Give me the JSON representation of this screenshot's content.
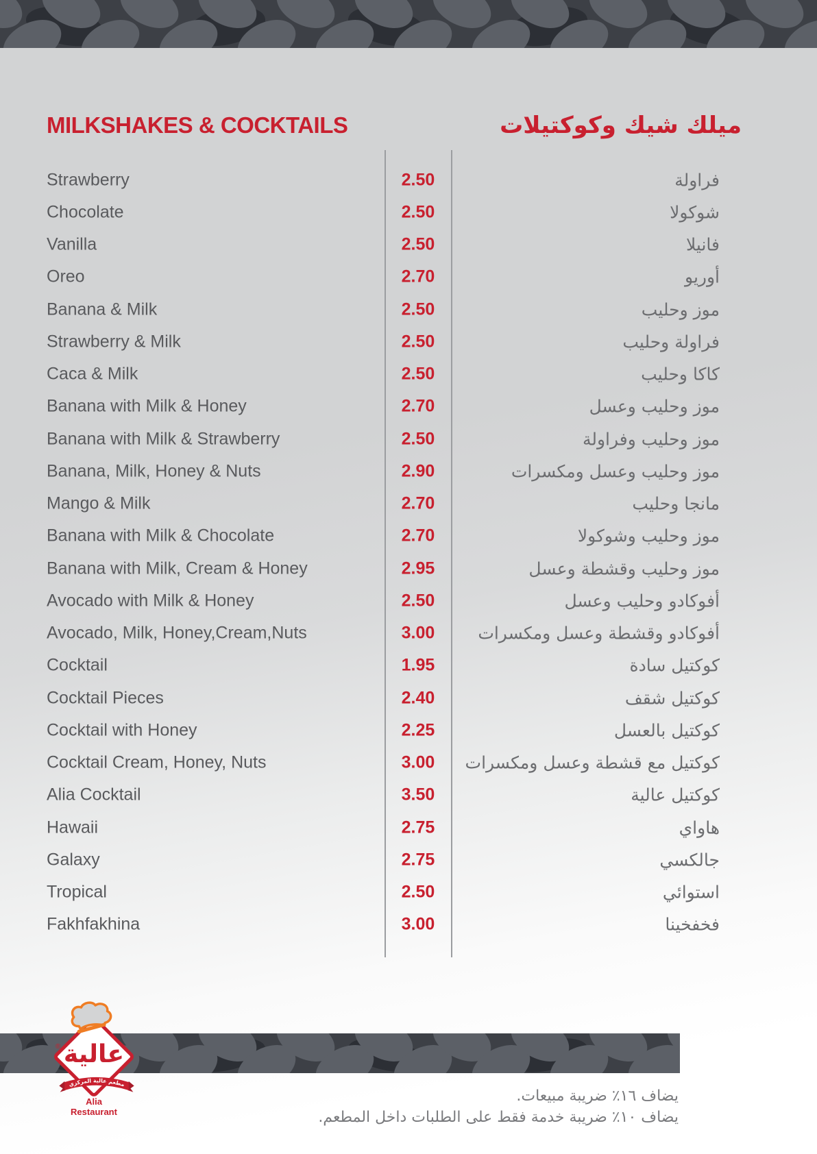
{
  "page": {
    "title_en": "MILKSHAKES & COCKTAILS",
    "title_ar": "ميلك شيك وكوكتيلات"
  },
  "menu": {
    "items": [
      {
        "en": "Strawberry",
        "price": "2.50",
        "ar": "فراولة"
      },
      {
        "en": "Chocolate",
        "price": "2.50",
        "ar": "شوكولا"
      },
      {
        "en": "Vanilla",
        "price": "2.50",
        "ar": "فانيلا"
      },
      {
        "en": "Oreo",
        "price": "2.70",
        "ar": "أوريو"
      },
      {
        "en": "Banana & Milk",
        "price": "2.50",
        "ar": "موز وحليب"
      },
      {
        "en": "Strawberry & Milk",
        "price": "2.50",
        "ar": "فراولة وحليب"
      },
      {
        "en": "Caca & Milk",
        "price": "2.50",
        "ar": "كاكا وحليب"
      },
      {
        "en": "Banana with Milk & Honey",
        "price": "2.70",
        "ar": "موز وحليب وعسل"
      },
      {
        "en": "Banana with Milk & Strawberry",
        "price": "2.50",
        "ar": "موز وحليب وفراولة"
      },
      {
        "en": "Banana, Milk, Honey & Nuts",
        "price": "2.90",
        "ar": "موز وحليب وعسل ومكسرات"
      },
      {
        "en": "Mango & Milk",
        "price": "2.70",
        "ar": "مانجا وحليب"
      },
      {
        "en": "Banana with Milk & Chocolate",
        "price": "2.70",
        "ar": "موز وحليب وشوكولا"
      },
      {
        "en": "Banana with Milk, Cream & Honey",
        "price": "2.95",
        "ar": "موز وحليب وقشطة وعسل"
      },
      {
        "en": "Avocado with Milk & Honey",
        "price": "2.50",
        "ar": "أفوكادو وحليب وعسل"
      },
      {
        "en": "Avocado, Milk, Honey,Cream,Nuts",
        "price": "3.00",
        "ar": "أفوكادو وقشطة وعسل ومكسرات"
      },
      {
        "en": "Cocktail",
        "price": "1.95",
        "ar": "كوكتيل سادة"
      },
      {
        "en": "Cocktail Pieces",
        "price": "2.40",
        "ar": "كوكتيل شقف"
      },
      {
        "en": "Cocktail with Honey",
        "price": "2.25",
        "ar": "كوكتيل بالعسل"
      },
      {
        "en": "Cocktail Cream, Honey, Nuts",
        "price": "3.00",
        "ar": "كوكتيل مع قشطة وعسل ومكسرات"
      },
      {
        "en": "Alia Cocktail",
        "price": "3.50",
        "ar": "كوكتيل عالية"
      },
      {
        "en": "Hawaii",
        "price": "2.75",
        "ar": "هاواي"
      },
      {
        "en": "Galaxy",
        "price": "2.75",
        "ar": "جالكسي"
      },
      {
        "en": "Tropical",
        "price": "2.50",
        "ar": "استوائي"
      },
      {
        "en": "Fakhfakhina",
        "price": "3.00",
        "ar": "فخفخينا"
      }
    ]
  },
  "footer": {
    "logo": {
      "brand_ar": "عالية",
      "registered_mark": "®",
      "ribbon_ar": "مطعم عالية المركزي",
      "name_line1": "Alia",
      "name_line2": "Restaurant"
    },
    "notes_ar": [
      "يضاف ١٦٪ ضريبة مبيعات.",
      "يضاف ١٠٪ ضريبة خدمة فقط على الطلبات داخل المطعم."
    ]
  },
  "colors": {
    "accent_red": "#c8202f",
    "item_text_en": "#595a5d",
    "item_text_ar": "#6c6d70",
    "divider": "#9b9da0",
    "band_base": "#3d4046",
    "band_blob": "#5c6067",
    "band_dark": "#2c2f35",
    "hat_orange": "#ef7d24",
    "background_gray": "#d2d3d4"
  }
}
